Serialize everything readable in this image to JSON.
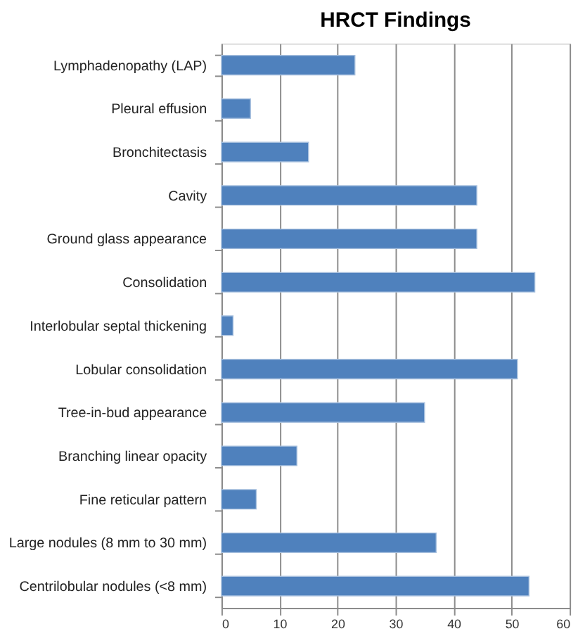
{
  "chart_data": {
    "type": "bar",
    "orientation": "horizontal",
    "title": "HRCT Findings",
    "categories": [
      "Lymphadenopathy (LAP)",
      "Pleural effusion",
      "Bronchitectasis",
      "Cavity",
      "Ground glass appearance",
      "Consolidation",
      "Interlobular septal thickening",
      "Lobular consolidation",
      "Tree-in-bud appearance",
      "Branching linear opacity",
      "Fine reticular pattern",
      "Large nodules (8 mm to 30 mm)",
      "Centrilobular nodules (<8 mm)"
    ],
    "values": [
      23,
      5,
      15,
      44,
      44,
      54,
      2,
      51,
      35,
      13,
      6,
      37,
      53
    ],
    "color": "#4f81bd",
    "xlim": [
      0,
      60
    ],
    "xticks": [
      0,
      10,
      20,
      30,
      40,
      50,
      60
    ],
    "grid": "x"
  }
}
